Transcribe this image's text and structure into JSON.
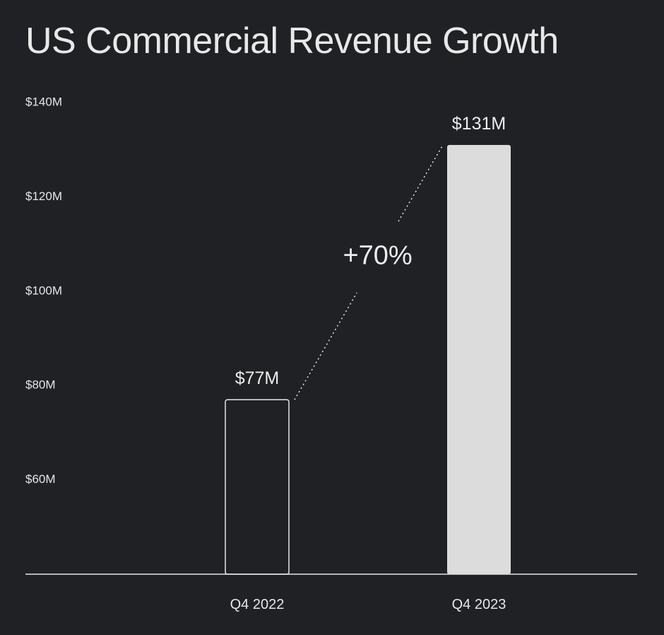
{
  "chart_data": {
    "type": "bar",
    "title": "US Commercial Revenue Growth",
    "xlabel": "",
    "ylabel": "",
    "categories": [
      "Q4 2022",
      "Q4 2023"
    ],
    "values": [
      77,
      131
    ],
    "value_labels": [
      "$77M",
      "$131M"
    ],
    "ylim": [
      40,
      140
    ],
    "yticks": [
      60,
      80,
      100,
      120,
      140
    ],
    "ytick_labels": [
      "$60M",
      "$80M",
      "$100M",
      "$120M",
      "$140M"
    ],
    "bar_styles": [
      "outline",
      "filled"
    ],
    "annotation": {
      "text": "+70%",
      "from_category": "Q4 2022",
      "to_category": "Q4 2023",
      "style": "dotted connector"
    },
    "grid": false,
    "colors": {
      "background": "#202124",
      "text": "#e6e6e6",
      "bar_fill": "#dcdcdc",
      "bar_outline": "#e6e6e6",
      "axis": "#e6e6e6"
    }
  }
}
